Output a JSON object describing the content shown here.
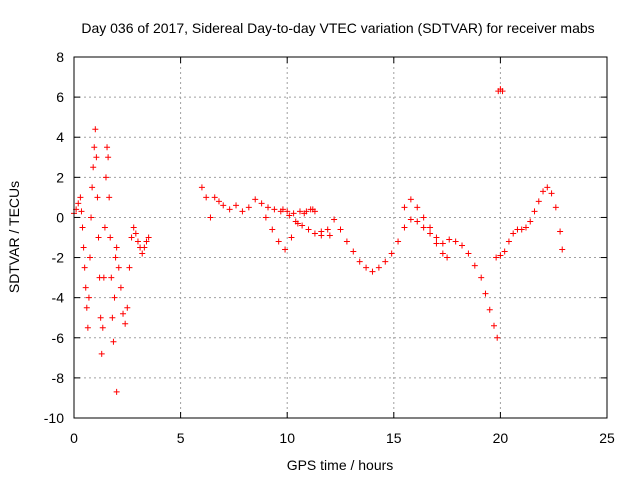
{
  "chart_data": {
    "type": "scatter",
    "title": "Day 036 of 2017, Sidereal Day-to-day VTEC variation (SDTVAR) for receiver mabs",
    "xlabel": "GPS time / hours",
    "ylabel": "SDTVAR / TECUs",
    "xlim": [
      0,
      25
    ],
    "ylim": [
      -10,
      8
    ],
    "xticks": [
      "0",
      "5",
      "10",
      "15",
      "20",
      "25"
    ],
    "yticks": [
      "-10",
      "-8",
      "-6",
      "-4",
      "-2",
      "0",
      "2",
      "4",
      "6",
      "8"
    ],
    "grid": true,
    "marker": "plus",
    "color": "#ff0000",
    "series": [
      {
        "name": "SDTVAR",
        "points": [
          [
            0.0,
            0.2
          ],
          [
            0.1,
            0.4
          ],
          [
            0.2,
            0.7
          ],
          [
            0.3,
            1.0
          ],
          [
            0.35,
            0.3
          ],
          [
            0.4,
            -0.5
          ],
          [
            0.45,
            -1.5
          ],
          [
            0.5,
            -2.5
          ],
          [
            0.55,
            -3.5
          ],
          [
            0.6,
            -4.5
          ],
          [
            0.65,
            -5.5
          ],
          [
            0.7,
            -4.0
          ],
          [
            0.75,
            -2.0
          ],
          [
            0.8,
            0.0
          ],
          [
            0.85,
            1.5
          ],
          [
            0.9,
            2.5
          ],
          [
            0.95,
            3.5
          ],
          [
            1.0,
            4.4
          ],
          [
            1.05,
            3.0
          ],
          [
            1.1,
            1.0
          ],
          [
            1.15,
            -1.0
          ],
          [
            1.2,
            -3.0
          ],
          [
            1.25,
            -5.0
          ],
          [
            1.3,
            -6.8
          ],
          [
            1.35,
            -5.5
          ],
          [
            1.4,
            -3.0
          ],
          [
            1.45,
            -0.5
          ],
          [
            1.5,
            2.0
          ],
          [
            1.55,
            3.5
          ],
          [
            1.6,
            3.0
          ],
          [
            1.65,
            1.0
          ],
          [
            1.7,
            -1.0
          ],
          [
            1.75,
            -3.0
          ],
          [
            1.8,
            -5.0
          ],
          [
            1.85,
            -6.2
          ],
          [
            1.9,
            -4.0
          ],
          [
            1.95,
            -2.0
          ],
          [
            2.0,
            -1.5
          ],
          [
            2.1,
            -2.5
          ],
          [
            2.2,
            -3.5
          ],
          [
            2.3,
            -4.8
          ],
          [
            2.4,
            -5.3
          ],
          [
            2.5,
            -4.5
          ],
          [
            2.6,
            -2.5
          ],
          [
            2.7,
            -1.0
          ],
          [
            2.8,
            -0.5
          ],
          [
            2.9,
            -0.8
          ],
          [
            3.0,
            -1.2
          ],
          [
            3.1,
            -1.5
          ],
          [
            3.2,
            -1.8
          ],
          [
            3.3,
            -1.5
          ],
          [
            3.4,
            -1.2
          ],
          [
            3.5,
            -1.0
          ],
          [
            2.0,
            -8.7
          ],
          [
            6.0,
            1.5
          ],
          [
            6.2,
            1.0
          ],
          [
            6.4,
            0.0
          ],
          [
            6.6,
            1.0
          ],
          [
            6.8,
            0.8
          ],
          [
            7.0,
            0.6
          ],
          [
            7.3,
            0.4
          ],
          [
            7.6,
            0.6
          ],
          [
            7.9,
            0.3
          ],
          [
            8.2,
            0.5
          ],
          [
            8.5,
            0.9
          ],
          [
            8.8,
            0.7
          ],
          [
            9.1,
            0.5
          ],
          [
            9.4,
            0.4
          ],
          [
            9.7,
            0.3
          ],
          [
            10.0,
            0.3
          ],
          [
            10.3,
            0.2
          ],
          [
            10.6,
            0.3
          ],
          [
            10.9,
            0.3
          ],
          [
            11.2,
            0.4
          ],
          [
            9.0,
            0.0
          ],
          [
            9.3,
            -0.6
          ],
          [
            9.6,
            -1.2
          ],
          [
            9.9,
            -1.6
          ],
          [
            10.2,
            -1.0
          ],
          [
            10.5,
            -0.3
          ],
          [
            10.8,
            0.2
          ],
          [
            11.1,
            0.4
          ],
          [
            11.3,
            0.3
          ],
          [
            9.8,
            0.4
          ],
          [
            10.1,
            0.1
          ],
          [
            10.4,
            -0.2
          ],
          [
            10.7,
            -0.4
          ],
          [
            11.0,
            -0.6
          ],
          [
            11.3,
            -0.8
          ],
          [
            11.6,
            -0.9
          ],
          [
            12.0,
            -0.9
          ],
          [
            11.6,
            -0.7
          ],
          [
            11.9,
            -0.6
          ],
          [
            12.2,
            -0.1
          ],
          [
            12.5,
            -0.6
          ],
          [
            12.8,
            -1.2
          ],
          [
            13.1,
            -1.7
          ],
          [
            13.4,
            -2.2
          ],
          [
            13.7,
            -2.5
          ],
          [
            14.0,
            -2.7
          ],
          [
            14.3,
            -2.5
          ],
          [
            14.6,
            -2.2
          ],
          [
            14.9,
            -1.8
          ],
          [
            15.2,
            -1.2
          ],
          [
            15.5,
            -0.5
          ],
          [
            15.8,
            -0.1
          ],
          [
            16.1,
            -0.2
          ],
          [
            16.4,
            -0.5
          ],
          [
            16.7,
            -0.8
          ],
          [
            17.0,
            -1.3
          ],
          [
            17.3,
            -1.8
          ],
          [
            17.5,
            -2.0
          ],
          [
            15.5,
            0.5
          ],
          [
            15.8,
            0.9
          ],
          [
            16.1,
            0.5
          ],
          [
            16.4,
            0.0
          ],
          [
            16.7,
            -0.5
          ],
          [
            17.0,
            -1.0
          ],
          [
            17.3,
            -1.3
          ],
          [
            17.6,
            -1.1
          ],
          [
            17.9,
            -1.2
          ],
          [
            18.2,
            -1.4
          ],
          [
            18.5,
            -1.8
          ],
          [
            18.8,
            -2.4
          ],
          [
            19.1,
            -3.0
          ],
          [
            19.3,
            -3.8
          ],
          [
            19.5,
            -4.6
          ],
          [
            19.7,
            -5.4
          ],
          [
            19.85,
            -6.0
          ],
          [
            19.8,
            -2.0
          ],
          [
            20.0,
            -1.9
          ],
          [
            20.2,
            -1.7
          ],
          [
            20.4,
            -1.2
          ],
          [
            20.6,
            -0.8
          ],
          [
            20.8,
            -0.6
          ],
          [
            21.0,
            -0.6
          ],
          [
            21.2,
            -0.5
          ],
          [
            21.4,
            -0.2
          ],
          [
            21.6,
            0.3
          ],
          [
            21.8,
            0.8
          ],
          [
            22.0,
            1.3
          ],
          [
            22.2,
            1.5
          ],
          [
            22.4,
            1.2
          ],
          [
            22.6,
            0.5
          ],
          [
            22.8,
            -0.7
          ],
          [
            22.9,
            -1.6
          ],
          [
            19.9,
            6.3
          ],
          [
            20.0,
            6.4
          ],
          [
            20.1,
            6.3
          ]
        ]
      }
    ]
  }
}
